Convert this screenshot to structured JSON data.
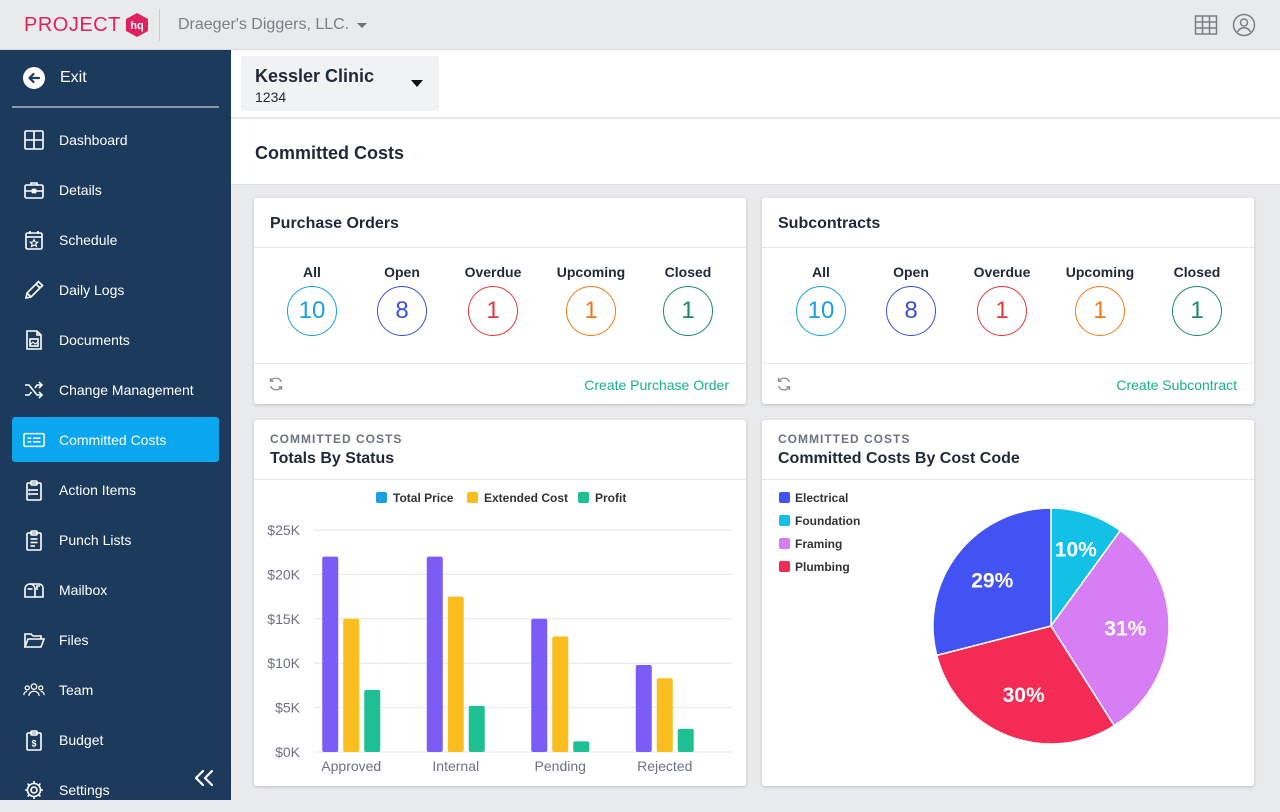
{
  "header": {
    "logo_text": "PROJECT",
    "logo_mark": "hq",
    "company": "Draeger's Diggers, LLC.",
    "icons": [
      "grid-icon",
      "user-circle-icon"
    ],
    "brand_color": "#e0215f"
  },
  "sidebar": {
    "exit_label": "Exit",
    "items": [
      {
        "label": "Dashboard",
        "icon": "dashboard-icon"
      },
      {
        "label": "Details",
        "icon": "briefcase-icon"
      },
      {
        "label": "Schedule",
        "icon": "calendar-star-icon"
      },
      {
        "label": "Daily Logs",
        "icon": "pencil-icon"
      },
      {
        "label": "Documents",
        "icon": "document-image-icon"
      },
      {
        "label": "Change Management",
        "icon": "shuffle-icon"
      },
      {
        "label": "Committed Costs",
        "icon": "id-card-icon",
        "active": true
      },
      {
        "label": "Action Items",
        "icon": "clipboard-list-icon"
      },
      {
        "label": "Punch Lists",
        "icon": "clipboard-icon"
      },
      {
        "label": "Mailbox",
        "icon": "mailbox-icon"
      },
      {
        "label": "Files",
        "icon": "folder-open-icon"
      },
      {
        "label": "Team",
        "icon": "team-icon"
      },
      {
        "label": "Budget",
        "icon": "budget-icon"
      },
      {
        "label": "Settings",
        "icon": "gear-icon"
      }
    ],
    "active_color": "#0aa6f0",
    "bg_color": "#1c3a5c"
  },
  "project": {
    "name": "Kessler Clinic",
    "number": "1234"
  },
  "page": {
    "title": "Committed Costs"
  },
  "purchase_orders": {
    "title": "Purchase Orders",
    "stats": [
      {
        "label": "All",
        "value": "10",
        "color": "#1a9fe0"
      },
      {
        "label": "Open",
        "value": "8",
        "color": "#3b4fd8"
      },
      {
        "label": "Overdue",
        "value": "1",
        "color": "#e03a3a"
      },
      {
        "label": "Upcoming",
        "value": "1",
        "color": "#f07a1a"
      },
      {
        "label": "Closed",
        "value": "1",
        "color": "#1a8a6a"
      }
    ],
    "create_label": "Create Purchase Order"
  },
  "subcontracts": {
    "title": "Subcontracts",
    "stats": [
      {
        "label": "All",
        "value": "10",
        "color": "#1a9fe0"
      },
      {
        "label": "Open",
        "value": "8",
        "color": "#3b4fd8"
      },
      {
        "label": "Overdue",
        "value": "1",
        "color": "#e03a3a"
      },
      {
        "label": "Upcoming",
        "value": "1",
        "color": "#f07a1a"
      },
      {
        "label": "Closed",
        "value": "1",
        "color": "#1a8a6a"
      }
    ],
    "create_label": "Create Subcontract"
  },
  "status_chart": {
    "kicker": "COMMITTED COSTS",
    "title": "Totals By Status"
  },
  "costcode_chart": {
    "kicker": "COMMITTED COSTS",
    "title": "Committed Costs By Cost Code"
  },
  "chart_data": [
    {
      "type": "bar",
      "title": "Totals By Status",
      "categories": [
        "Approved",
        "Internal",
        "Pending",
        "Rejected"
      ],
      "series": [
        {
          "name": "Total Price",
          "values": [
            22000,
            22000,
            15000,
            9800
          ],
          "color": "#7c5cf6"
        },
        {
          "name": "Extended Cost",
          "values": [
            15000,
            17500,
            13000,
            8300
          ],
          "color": "#f9be1d"
        },
        {
          "name": "Profit",
          "values": [
            7000,
            5200,
            1200,
            2600
          ],
          "color": "#1fbf94"
        }
      ],
      "legend_colors": [
        "#1a9fe0",
        "#f9be1d",
        "#1fbf94"
      ],
      "ylim": [
        0,
        25000
      ],
      "yticks": [
        0,
        5000,
        10000,
        15000,
        20000,
        25000
      ],
      "ytick_labels": [
        "$0K",
        "$5K",
        "$10K",
        "$15K",
        "$20K",
        "$25K"
      ],
      "legend": "top",
      "grid": true
    },
    {
      "type": "pie",
      "title": "Committed Costs By Cost Code",
      "labels": [
        "Electrical",
        "Foundation",
        "Framing",
        "Plumbing"
      ],
      "values": [
        29,
        10,
        31,
        30
      ],
      "value_labels": [
        "29%",
        "10%",
        "31%",
        "30%"
      ],
      "colors": [
        "#4353f3",
        "#13c0e6",
        "#d77ef5",
        "#f42b55"
      ],
      "legend": "top-left"
    }
  ]
}
